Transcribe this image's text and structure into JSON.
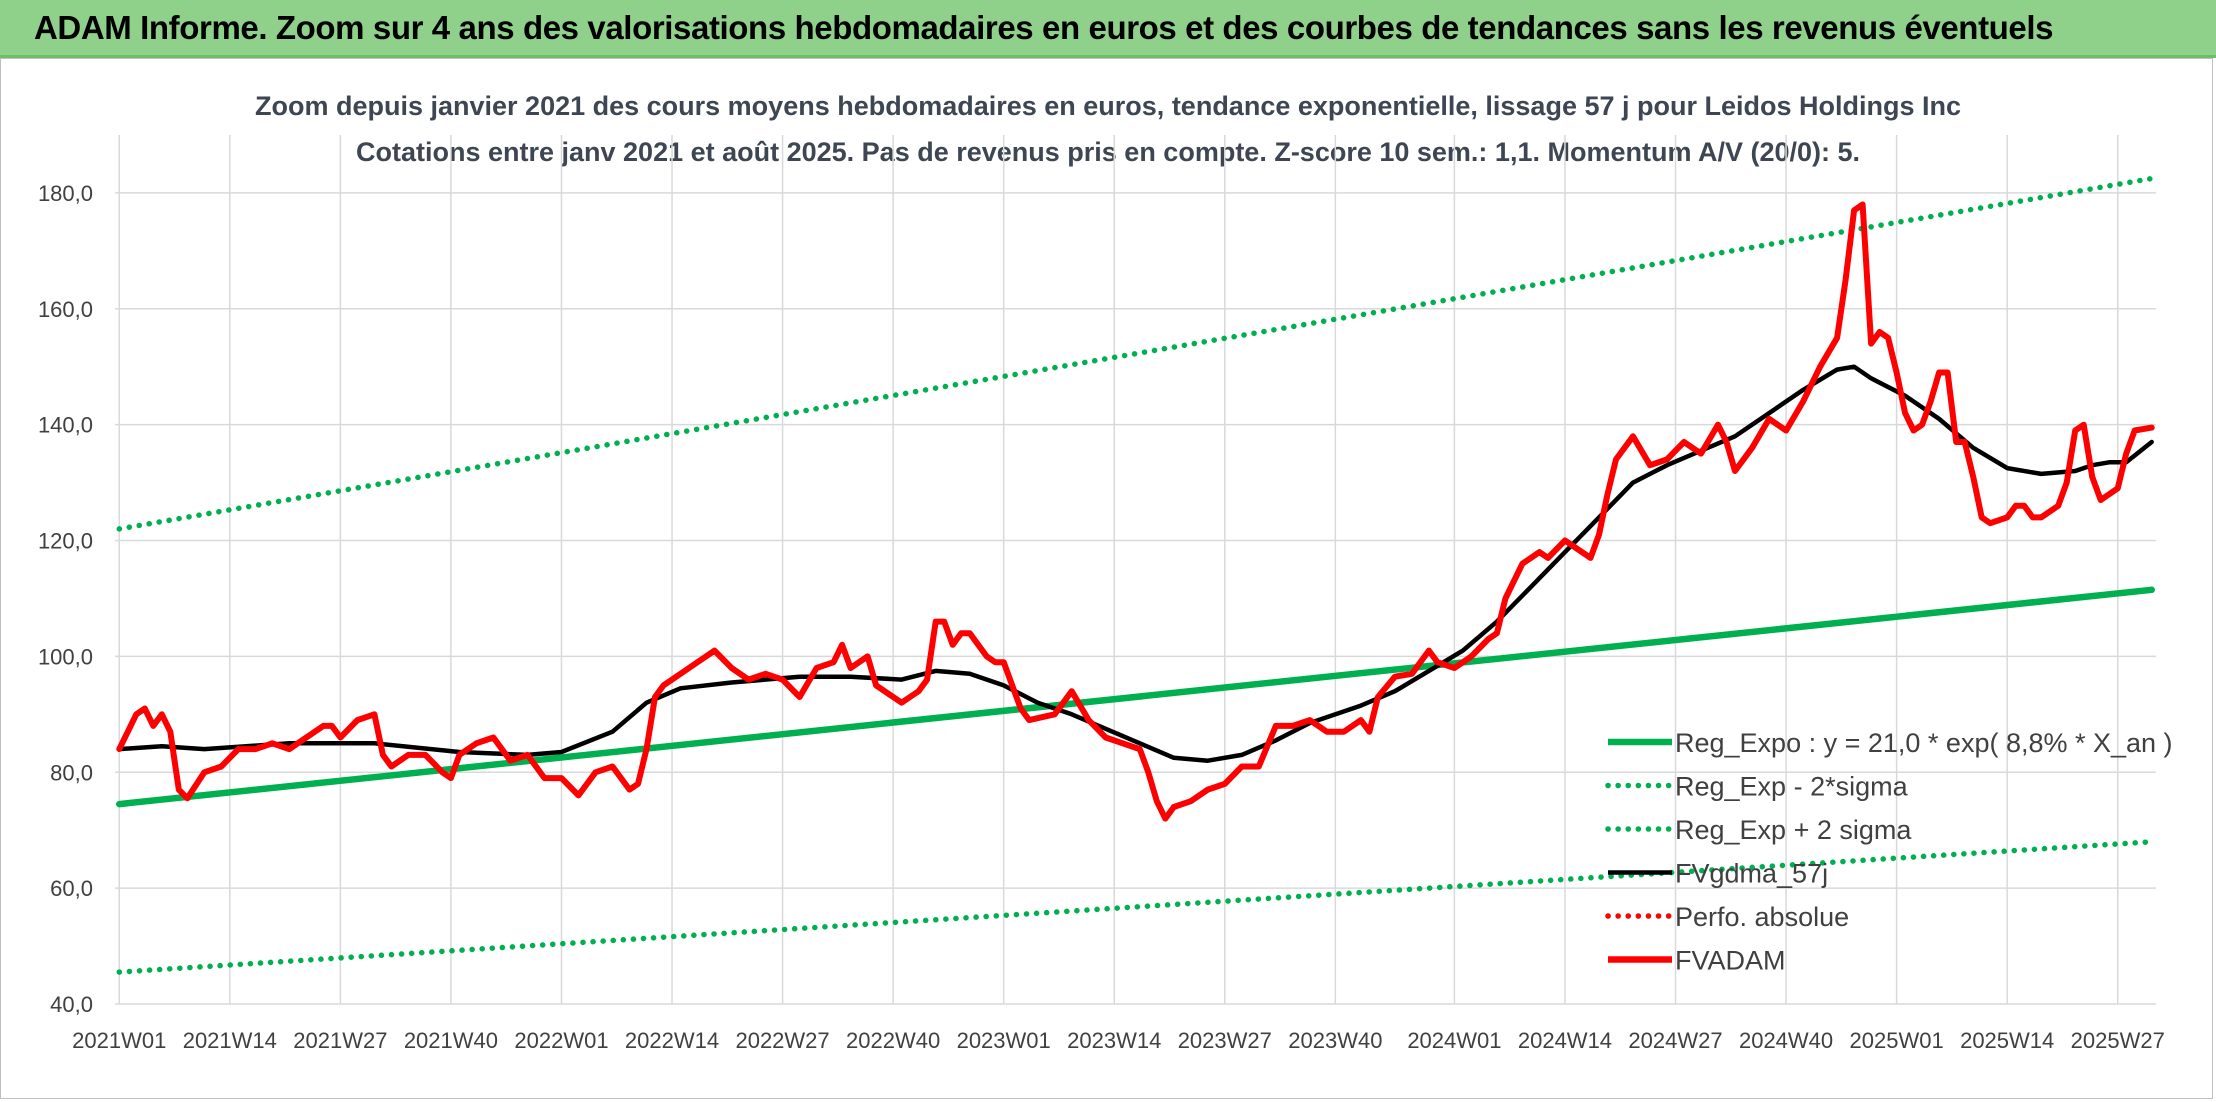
{
  "header": {
    "banner": "ADAM Informe. Zoom sur 4 ans des valorisations hebdomadaires en euros et des courbes de tendances sans les revenus éventuels"
  },
  "colors": {
    "banner_bg": "#8fd08a",
    "trend_green": "#00b050",
    "price_red": "#ff0000",
    "smooth_black": "#000000",
    "grid": "#d9d9d9"
  },
  "chart_data": {
    "type": "line",
    "title": "Zoom depuis janvier 2021 des cours moyens hebdomadaires en euros, tendance exponentielle, lissage 57 j pour Leidos Holdings Inc",
    "subtitle": "Cotations entre janv 2021 et août 2025. Pas de revenus pris en compte. Z-score 10 sem.: 1,1. Momentum A/V (20/0): 5.",
    "xlabel": "",
    "ylabel": "",
    "ylim": [
      40,
      190
    ],
    "yticks": [
      "40,0",
      "60,0",
      "80,0",
      "100,0",
      "120,0",
      "140,0",
      "160,0",
      "180,0"
    ],
    "ytick_values": [
      40,
      60,
      80,
      100,
      120,
      140,
      160,
      180
    ],
    "x_count": 240,
    "xticks": [
      "2021W01",
      "2021W14",
      "2021W27",
      "2021W40",
      "2022W01",
      "2022W14",
      "2022W27",
      "2022W40",
      "2023W01",
      "2023W14",
      "2023W27",
      "2023W40",
      "2024W01",
      "2024W14",
      "2024W27",
      "2024W40",
      "2025W01",
      "2025W14",
      "2025W27"
    ],
    "xtick_index": [
      0,
      13,
      26,
      39,
      52,
      65,
      78,
      91,
      104,
      117,
      130,
      143,
      157,
      170,
      183,
      196,
      209,
      222,
      235
    ],
    "grid": true,
    "legend_position": "bottom-right",
    "series": [
      {
        "name": "Reg_Expo : y = 21,0 * exp( 8,8% *  X_an )",
        "style": "solid",
        "color": "#00b050",
        "points": [
          [
            0,
            74.5
          ],
          [
            239,
            111.5
          ]
        ]
      },
      {
        "name": "Reg_Exp - 2*sigma",
        "style": "dotted",
        "color": "#00b050",
        "points": [
          [
            0,
            45.5
          ],
          [
            239,
            68.0
          ]
        ]
      },
      {
        "name": "Reg_Exp + 2 sigma",
        "style": "dotted",
        "color": "#00b050",
        "points": [
          [
            0,
            122.0
          ],
          [
            239,
            182.5
          ]
        ]
      },
      {
        "name": "FVgdma_57j",
        "style": "solid",
        "color": "#000000",
        "points": [
          [
            0,
            84
          ],
          [
            5,
            84.5
          ],
          [
            10,
            84
          ],
          [
            20,
            85
          ],
          [
            30,
            85
          ],
          [
            40,
            83.5
          ],
          [
            48,
            83
          ],
          [
            52,
            83.5
          ],
          [
            58,
            87
          ],
          [
            62,
            92
          ],
          [
            66,
            94.5
          ],
          [
            72,
            95.5
          ],
          [
            80,
            96.5
          ],
          [
            86,
            96.5
          ],
          [
            92,
            96
          ],
          [
            96,
            97.5
          ],
          [
            100,
            97
          ],
          [
            104,
            95
          ],
          [
            108,
            92
          ],
          [
            112,
            90
          ],
          [
            116,
            87.5
          ],
          [
            120,
            85
          ],
          [
            124,
            82.5
          ],
          [
            128,
            82
          ],
          [
            132,
            83
          ],
          [
            136,
            85.5
          ],
          [
            140,
            88.5
          ],
          [
            146,
            91.5
          ],
          [
            150,
            94
          ],
          [
            154,
            97.5
          ],
          [
            158,
            101
          ],
          [
            162,
            106
          ],
          [
            166,
            112
          ],
          [
            170,
            118
          ],
          [
            174,
            124
          ],
          [
            178,
            130
          ],
          [
            182,
            133
          ],
          [
            186,
            135.5
          ],
          [
            190,
            138
          ],
          [
            194,
            142
          ],
          [
            198,
            146
          ],
          [
            202,
            149.5
          ],
          [
            204,
            150
          ],
          [
            206,
            148
          ],
          [
            210,
            145
          ],
          [
            214,
            141
          ],
          [
            218,
            136
          ],
          [
            222,
            132.5
          ],
          [
            226,
            131.5
          ],
          [
            230,
            132
          ],
          [
            232,
            133
          ],
          [
            234,
            133.5
          ],
          [
            236,
            133.5
          ],
          [
            239,
            137
          ]
        ]
      },
      {
        "name": "Perfo. absolue",
        "style": "dotted",
        "color": "#ff0000",
        "points": []
      },
      {
        "name": "FVADAM",
        "style": "solid",
        "color": "#ff0000",
        "points": [
          [
            0,
            84
          ],
          [
            2,
            90
          ],
          [
            3,
            91
          ],
          [
            4,
            88
          ],
          [
            5,
            90
          ],
          [
            6,
            87
          ],
          [
            7,
            77
          ],
          [
            8,
            75.5
          ],
          [
            10,
            80
          ],
          [
            12,
            81
          ],
          [
            14,
            84
          ],
          [
            16,
            84
          ],
          [
            18,
            85
          ],
          [
            20,
            84
          ],
          [
            22,
            86
          ],
          [
            24,
            88
          ],
          [
            25,
            88
          ],
          [
            26,
            86
          ],
          [
            28,
            89
          ],
          [
            30,
            90
          ],
          [
            31,
            83
          ],
          [
            32,
            81
          ],
          [
            34,
            83
          ],
          [
            36,
            83
          ],
          [
            38,
            80
          ],
          [
            39,
            79
          ],
          [
            40,
            83
          ],
          [
            42,
            85
          ],
          [
            44,
            86
          ],
          [
            46,
            82
          ],
          [
            48,
            83
          ],
          [
            50,
            79
          ],
          [
            52,
            79
          ],
          [
            54,
            76
          ],
          [
            56,
            80
          ],
          [
            58,
            81
          ],
          [
            60,
            77
          ],
          [
            61,
            78
          ],
          [
            62,
            84
          ],
          [
            63,
            93
          ],
          [
            64,
            95
          ],
          [
            66,
            97
          ],
          [
            68,
            99
          ],
          [
            70,
            101
          ],
          [
            72,
            98
          ],
          [
            74,
            96
          ],
          [
            76,
            97
          ],
          [
            78,
            96
          ],
          [
            80,
            93
          ],
          [
            82,
            98
          ],
          [
            84,
            99
          ],
          [
            85,
            102
          ],
          [
            86,
            98
          ],
          [
            88,
            100
          ],
          [
            89,
            95
          ],
          [
            92,
            92
          ],
          [
            94,
            94
          ],
          [
            95,
            96
          ],
          [
            96,
            106
          ],
          [
            97,
            106
          ],
          [
            98,
            102
          ],
          [
            99,
            104
          ],
          [
            100,
            104
          ],
          [
            102,
            100
          ],
          [
            103,
            99
          ],
          [
            104,
            99
          ],
          [
            106,
            91
          ],
          [
            107,
            89
          ],
          [
            110,
            90
          ],
          [
            112,
            94
          ],
          [
            114,
            89
          ],
          [
            116,
            86
          ],
          [
            118,
            85
          ],
          [
            120,
            84
          ],
          [
            121,
            80
          ],
          [
            122,
            75
          ],
          [
            123,
            72
          ],
          [
            124,
            74
          ],
          [
            126,
            75
          ],
          [
            128,
            77
          ],
          [
            130,
            78
          ],
          [
            132,
            81
          ],
          [
            134,
            81
          ],
          [
            136,
            88
          ],
          [
            138,
            88
          ],
          [
            140,
            89
          ],
          [
            142,
            87
          ],
          [
            144,
            87
          ],
          [
            146,
            89
          ],
          [
            147,
            87
          ],
          [
            148,
            93
          ],
          [
            150,
            96.5
          ],
          [
            152,
            97
          ],
          [
            154,
            101
          ],
          [
            155,
            99
          ],
          [
            157,
            98
          ],
          [
            159,
            100
          ],
          [
            161,
            103
          ],
          [
            162,
            104
          ],
          [
            163,
            110
          ],
          [
            165,
            116
          ],
          [
            167,
            118
          ],
          [
            168,
            117
          ],
          [
            170,
            120
          ],
          [
            172,
            118
          ],
          [
            173,
            117
          ],
          [
            174,
            121
          ],
          [
            175,
            128
          ],
          [
            176,
            134
          ],
          [
            178,
            138
          ],
          [
            180,
            133
          ],
          [
            182,
            134
          ],
          [
            184,
            137
          ],
          [
            186,
            135
          ],
          [
            188,
            140
          ],
          [
            189,
            137
          ],
          [
            190,
            132
          ],
          [
            192,
            136
          ],
          [
            194,
            141
          ],
          [
            196,
            139
          ],
          [
            198,
            144
          ],
          [
            200,
            150
          ],
          [
            202,
            155
          ],
          [
            203,
            165
          ],
          [
            204,
            177
          ],
          [
            205,
            178
          ],
          [
            206,
            154
          ],
          [
            207,
            156
          ],
          [
            208,
            155
          ],
          [
            209,
            149
          ],
          [
            210,
            142
          ],
          [
            211,
            139
          ],
          [
            212,
            140
          ],
          [
            213,
            144
          ],
          [
            214,
            149
          ],
          [
            215,
            149
          ],
          [
            216,
            137
          ],
          [
            217,
            137
          ],
          [
            218,
            131
          ],
          [
            219,
            124
          ],
          [
            220,
            123
          ],
          [
            222,
            124
          ],
          [
            223,
            126
          ],
          [
            224,
            126
          ],
          [
            225,
            124
          ],
          [
            226,
            124
          ],
          [
            228,
            126
          ],
          [
            229,
            130
          ],
          [
            230,
            139
          ],
          [
            231,
            140
          ],
          [
            232,
            131
          ],
          [
            233,
            127
          ],
          [
            234,
            128
          ],
          [
            235,
            129
          ],
          [
            236,
            135
          ],
          [
            237,
            139
          ],
          [
            239,
            139.5
          ]
        ]
      }
    ]
  }
}
